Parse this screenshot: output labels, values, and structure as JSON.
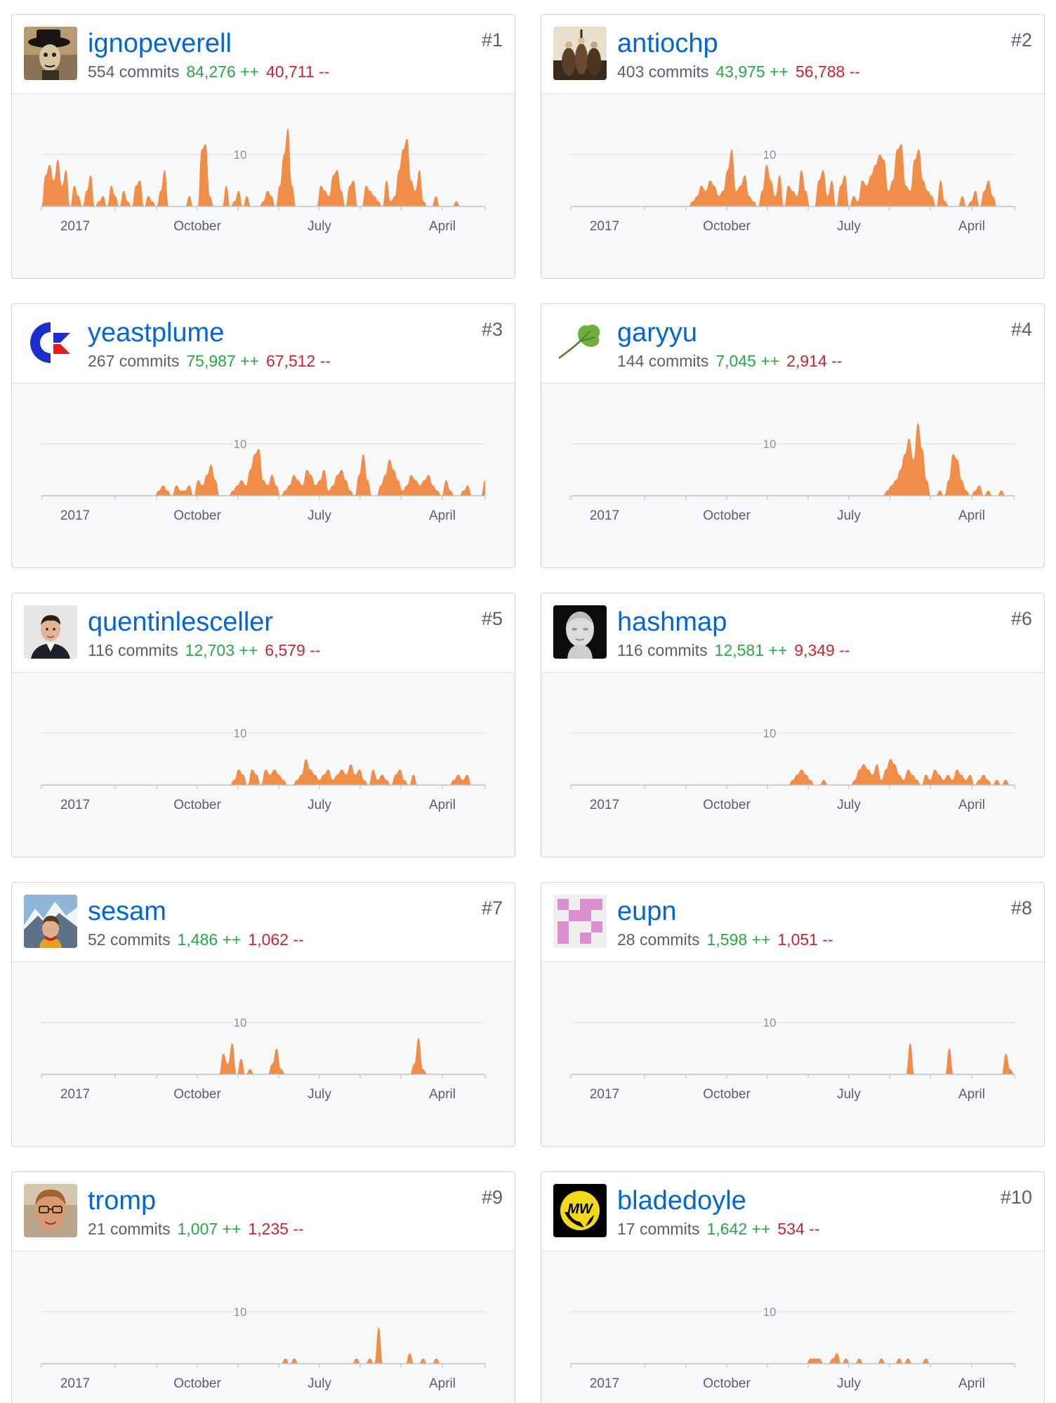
{
  "colors": {
    "link": "#0366d6",
    "additions": "#28a745",
    "deletions": "#cb2431",
    "area_fill": "#f08d49",
    "chart_background": "#f6f8fa"
  },
  "contributors": [
    {
      "rank": "#1",
      "username": "ignopeverell",
      "commits": "554 commits",
      "additions": "84,276 ++",
      "deletions": "40,711 --",
      "avatar_icon": "top-hat-portrait-avatar",
      "chart_data": {
        "type": "area",
        "x_labels": [
          "2017",
          "October",
          "July",
          "April"
        ],
        "gridline_label": "10",
        "y_max": 10,
        "ylim": [
          0,
          13
        ],
        "values": [
          0,
          6,
          8,
          5,
          9,
          4,
          7,
          0,
          4,
          2,
          0,
          3,
          6,
          0,
          1,
          2,
          0,
          4,
          2,
          0,
          3,
          1,
          0,
          4,
          5,
          0,
          2,
          1,
          0,
          3,
          7,
          0,
          0,
          0,
          0,
          0,
          2,
          0,
          0,
          11,
          12,
          2,
          0,
          0,
          0,
          4,
          0,
          1,
          3,
          0,
          2,
          0,
          0,
          0,
          1,
          3,
          2,
          0,
          4,
          10,
          15,
          4,
          0,
          0,
          0,
          0,
          0,
          0,
          4,
          3,
          2,
          6,
          7,
          3,
          0,
          4,
          5,
          0,
          0,
          4,
          3,
          2,
          1,
          0,
          5,
          1,
          2,
          7,
          11,
          13,
          5,
          3,
          7,
          1,
          0,
          0,
          2,
          0,
          0,
          0,
          0,
          1,
          0,
          0,
          0,
          0,
          0,
          0,
          0
        ]
      }
    },
    {
      "rank": "#2",
      "username": "antiochp",
      "commits": "403 commits",
      "additions": "43,975 ++",
      "deletions": "56,788 --",
      "avatar_icon": "figurines-photo-avatar",
      "chart_data": {
        "type": "area",
        "x_labels": [
          "2017",
          "October",
          "July",
          "April"
        ],
        "gridline_label": "10",
        "y_max": 10,
        "ylim": [
          0,
          13
        ],
        "values": [
          0,
          0,
          0,
          0,
          0,
          0,
          0,
          0,
          0,
          0,
          0,
          0,
          0,
          0,
          0,
          0,
          0,
          0,
          0,
          0,
          0,
          0,
          0,
          0,
          0,
          0,
          0,
          0,
          1,
          2,
          4,
          3,
          5,
          4,
          2,
          3,
          7,
          11,
          3,
          4,
          6,
          2,
          1,
          0,
          3,
          8,
          5,
          2,
          6,
          0,
          4,
          3,
          2,
          7,
          3,
          0,
          0,
          5,
          7,
          2,
          5,
          0,
          4,
          6,
          0,
          2,
          1,
          5,
          4,
          6,
          8,
          10,
          9,
          3,
          5,
          11,
          12,
          4,
          3,
          9,
          11,
          5,
          3,
          2,
          0,
          5,
          1,
          0,
          0,
          0,
          2,
          0,
          1,
          3,
          0,
          3,
          5,
          2,
          0,
          0,
          0,
          0,
          0
        ]
      }
    },
    {
      "rank": "#3",
      "username": "yeastplume",
      "commits": "267 commits",
      "additions": "75,987 ++",
      "deletions": "67,512 --",
      "avatar_icon": "commodore-logo-avatar",
      "chart_data": {
        "type": "area",
        "x_labels": [
          "2017",
          "October",
          "July",
          "April"
        ],
        "gridline_label": "10",
        "y_max": 10,
        "ylim": [
          0,
          13
        ],
        "values": [
          0,
          0,
          0,
          0,
          0,
          0,
          0,
          0,
          0,
          0,
          0,
          0,
          0,
          0,
          0,
          0,
          0,
          0,
          0,
          0,
          0,
          0,
          0,
          0,
          0,
          0,
          0,
          1,
          2,
          1,
          0,
          2,
          1,
          1,
          2,
          0,
          3,
          2,
          4,
          6,
          3,
          0,
          0,
          0,
          1,
          2,
          3,
          2,
          5,
          8,
          9,
          3,
          2,
          4,
          2,
          0,
          1,
          2,
          4,
          3,
          2,
          5,
          4,
          2,
          3,
          5,
          1,
          2,
          4,
          5,
          3,
          1,
          0,
          4,
          8,
          3,
          0,
          0,
          2,
          4,
          7,
          5,
          3,
          1,
          2,
          4,
          3,
          2,
          3,
          4,
          2,
          1,
          0,
          3,
          1,
          0,
          0,
          1,
          2,
          0,
          0,
          0,
          3
        ]
      }
    },
    {
      "rank": "#4",
      "username": "garyyu",
      "commits": "144 commits",
      "additions": "7,045 ++",
      "deletions": "2,914 --",
      "avatar_icon": "ginkgo-leaf-avatar",
      "chart_data": {
        "type": "area",
        "x_labels": [
          "2017",
          "October",
          "July",
          "April"
        ],
        "gridline_label": "10",
        "y_max": 10,
        "ylim": [
          0,
          13
        ],
        "values": [
          0,
          0,
          0,
          0,
          0,
          0,
          0,
          0,
          0,
          0,
          0,
          0,
          0,
          0,
          0,
          0,
          0,
          0,
          0,
          0,
          0,
          0,
          0,
          0,
          0,
          0,
          0,
          0,
          0,
          0,
          0,
          0,
          0,
          0,
          0,
          0,
          0,
          0,
          0,
          0,
          0,
          0,
          0,
          0,
          0,
          0,
          0,
          0,
          0,
          0,
          0,
          0,
          0,
          0,
          0,
          0,
          0,
          0,
          0,
          0,
          0,
          0,
          0,
          0,
          0,
          0,
          0,
          0,
          0,
          0,
          0,
          0,
          1,
          2,
          3,
          5,
          8,
          11,
          7,
          14,
          9,
          3,
          0,
          0,
          1,
          0,
          3,
          8,
          7,
          3,
          1,
          0,
          1,
          2,
          0,
          1,
          0,
          0,
          1,
          0,
          0,
          0
        ]
      }
    },
    {
      "rank": "#5",
      "username": "quentinlesceller",
      "commits": "116 commits",
      "additions": "12,703 ++",
      "deletions": "6,579 --",
      "avatar_icon": "man-portrait-avatar",
      "chart_data": {
        "type": "area",
        "x_labels": [
          "2017",
          "October",
          "July",
          "April"
        ],
        "gridline_label": "10",
        "y_max": 10,
        "ylim": [
          0,
          13
        ],
        "values": [
          0,
          0,
          0,
          0,
          0,
          0,
          0,
          0,
          0,
          0,
          0,
          0,
          0,
          0,
          0,
          0,
          0,
          0,
          0,
          0,
          0,
          0,
          0,
          0,
          0,
          0,
          0,
          0,
          0,
          0,
          0,
          0,
          0,
          0,
          0,
          0,
          0,
          0,
          0,
          0,
          0,
          0,
          0,
          1,
          3,
          2,
          0,
          3,
          2,
          0,
          3,
          2,
          3,
          2,
          1,
          0,
          0,
          1,
          2,
          5,
          3,
          2,
          1,
          2,
          3,
          1,
          2,
          3,
          2,
          4,
          2,
          3,
          1,
          0,
          3,
          1,
          2,
          1,
          0,
          2,
          3,
          1,
          0,
          2,
          0,
          0,
          0,
          0,
          0,
          0,
          0,
          0,
          1,
          2,
          1,
          2,
          0,
          0,
          0,
          0
        ]
      }
    },
    {
      "rank": "#6",
      "username": "hashmap",
      "commits": "116 commits",
      "additions": "12,581 ++",
      "deletions": "9,349 --",
      "avatar_icon": "marble-bust-avatar",
      "chart_data": {
        "type": "area",
        "x_labels": [
          "2017",
          "October",
          "July",
          "April"
        ],
        "gridline_label": "10",
        "y_max": 10,
        "ylim": [
          0,
          13
        ],
        "values": [
          0,
          0,
          0,
          0,
          0,
          0,
          0,
          0,
          0,
          0,
          0,
          0,
          0,
          0,
          0,
          0,
          0,
          0,
          0,
          0,
          0,
          0,
          0,
          0,
          0,
          0,
          0,
          0,
          0,
          0,
          0,
          0,
          0,
          0,
          0,
          0,
          0,
          0,
          0,
          0,
          0,
          0,
          0,
          0,
          0,
          0,
          0,
          0,
          0,
          0,
          1,
          2,
          3,
          2,
          1,
          0,
          0,
          1,
          0,
          0,
          0,
          0,
          0,
          0,
          1,
          3,
          4,
          3,
          2,
          4,
          1,
          3,
          5,
          4,
          2,
          1,
          3,
          2,
          1,
          0,
          2,
          1,
          3,
          2,
          1,
          2,
          1,
          3,
          2,
          1,
          2,
          0,
          1,
          2,
          1,
          0,
          1,
          0,
          1,
          0,
          0
        ]
      }
    },
    {
      "rank": "#7",
      "username": "sesam",
      "commits": "52 commits",
      "additions": "1,486 ++",
      "deletions": "1,062 --",
      "avatar_icon": "woman-mountains-avatar",
      "chart_data": {
        "type": "area",
        "x_labels": [
          "2017",
          "October",
          "July",
          "April"
        ],
        "gridline_label": "10",
        "y_max": 10,
        "ylim": [
          0,
          13
        ],
        "values": [
          0,
          0,
          0,
          0,
          0,
          0,
          0,
          0,
          0,
          0,
          0,
          0,
          0,
          0,
          0,
          0,
          0,
          0,
          0,
          0,
          0,
          0,
          0,
          0,
          0,
          0,
          0,
          0,
          0,
          0,
          0,
          0,
          0,
          0,
          0,
          0,
          0,
          0,
          0,
          0,
          0,
          4,
          2,
          6,
          0,
          3,
          0,
          1,
          0,
          0,
          0,
          0,
          2,
          5,
          1,
          0,
          0,
          0,
          0,
          0,
          0,
          0,
          0,
          0,
          0,
          0,
          0,
          0,
          0,
          0,
          0,
          0,
          0,
          0,
          0,
          0,
          0,
          0,
          0,
          0,
          0,
          0,
          0,
          0,
          2,
          7,
          1,
          0,
          0,
          0,
          0,
          0,
          0,
          0,
          0,
          0,
          0,
          0,
          0,
          0,
          0
        ]
      }
    },
    {
      "rank": "#8",
      "username": "eupn",
      "commits": "28 commits",
      "additions": "1,598 ++",
      "deletions": "1,051 --",
      "avatar_icon": "pink-identicon-avatar",
      "chart_data": {
        "type": "area",
        "x_labels": [
          "2017",
          "October",
          "July",
          "April"
        ],
        "gridline_label": "10",
        "y_max": 10,
        "ylim": [
          0,
          13
        ],
        "values": [
          0,
          0,
          0,
          0,
          0,
          0,
          0,
          0,
          0,
          0,
          0,
          0,
          0,
          0,
          0,
          0,
          0,
          0,
          0,
          0,
          0,
          0,
          0,
          0,
          0,
          0,
          0,
          0,
          0,
          0,
          0,
          0,
          0,
          0,
          0,
          0,
          0,
          0,
          0,
          0,
          0,
          0,
          0,
          0,
          0,
          0,
          0,
          0,
          0,
          0,
          0,
          0,
          0,
          0,
          0,
          0,
          0,
          0,
          0,
          0,
          0,
          0,
          0,
          0,
          0,
          0,
          0,
          0,
          0,
          0,
          0,
          0,
          0,
          0,
          0,
          0,
          0,
          0,
          6,
          0,
          0,
          0,
          0,
          0,
          0,
          0,
          0,
          5,
          0,
          0,
          0,
          0,
          0,
          0,
          0,
          0,
          0,
          0,
          0,
          0,
          4,
          1,
          0
        ]
      }
    },
    {
      "rank": "#9",
      "username": "tromp",
      "commits": "21 commits",
      "additions": "1,007 ++",
      "deletions": "1,235 --",
      "avatar_icon": "man-glasses-avatar",
      "chart_data": {
        "type": "area",
        "x_labels": [
          "2017",
          "October",
          "July",
          "April"
        ],
        "gridline_label": "10",
        "y_max": 10,
        "ylim": [
          0,
          13
        ],
        "values": [
          0,
          0,
          0,
          0,
          0,
          0,
          0,
          0,
          0,
          0,
          0,
          0,
          0,
          0,
          0,
          0,
          0,
          0,
          0,
          0,
          0,
          0,
          0,
          0,
          0,
          0,
          0,
          0,
          0,
          0,
          0,
          0,
          0,
          0,
          0,
          0,
          0,
          0,
          0,
          0,
          0,
          0,
          0,
          0,
          0,
          0,
          0,
          0,
          0,
          0,
          0,
          0,
          0,
          0,
          0,
          1,
          0,
          1,
          0,
          0,
          0,
          0,
          0,
          0,
          0,
          0,
          0,
          0,
          0,
          0,
          0,
          1,
          0,
          0,
          1,
          0,
          7,
          0,
          0,
          0,
          0,
          0,
          0,
          2,
          0,
          0,
          1,
          0,
          0,
          1,
          0,
          0,
          0,
          0,
          0,
          0,
          0,
          0,
          0,
          0,
          0
        ]
      }
    },
    {
      "rank": "#10",
      "username": "bladedoyle",
      "commits": "17 commits",
      "additions": "1,642 ++",
      "deletions": "534 --",
      "avatar_icon": "mw-logo-avatar",
      "chart_data": {
        "type": "area",
        "x_labels": [
          "2017",
          "October",
          "July",
          "April"
        ],
        "gridline_label": "10",
        "y_max": 10,
        "ylim": [
          0,
          13
        ],
        "values": [
          0,
          0,
          0,
          0,
          0,
          0,
          0,
          0,
          0,
          0,
          0,
          0,
          0,
          0,
          0,
          0,
          0,
          0,
          0,
          0,
          0,
          0,
          0,
          0,
          0,
          0,
          0,
          0,
          0,
          0,
          0,
          0,
          0,
          0,
          0,
          0,
          0,
          0,
          0,
          0,
          0,
          0,
          0,
          0,
          0,
          0,
          0,
          0,
          0,
          0,
          0,
          0,
          0,
          0,
          1,
          1,
          1,
          0,
          0,
          1,
          2,
          0,
          1,
          0,
          0,
          1,
          0,
          0,
          0,
          0,
          1,
          0,
          0,
          0,
          1,
          0,
          1,
          0,
          0,
          0,
          1,
          0,
          0,
          0,
          0,
          0,
          0,
          0,
          0,
          0,
          0,
          0,
          0,
          0,
          0,
          0,
          0,
          0,
          0,
          0,
          0
        ]
      }
    }
  ]
}
